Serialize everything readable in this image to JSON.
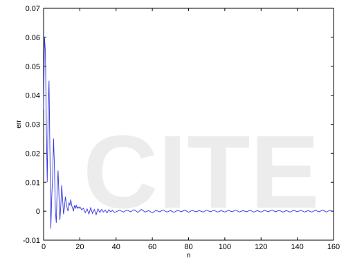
{
  "chart_data": {
    "type": "line",
    "title": "",
    "xlabel": "n",
    "ylabel": "err",
    "xlim": [
      0,
      160
    ],
    "ylim": [
      -0.01,
      0.07
    ],
    "grid": false,
    "legend": "none",
    "line_color": "#3333dd",
    "xticks": [
      "0",
      "20",
      "40",
      "60",
      "80",
      "100",
      "120",
      "140",
      "160"
    ],
    "yticks": [
      "-0.01",
      "0",
      "0.01",
      "0.02",
      "0.03",
      "0.04",
      "0.05",
      "0.06",
      "0.07"
    ],
    "series": [
      {
        "x": [
          0,
          0.5,
          1,
          1.5,
          2,
          2.5,
          3,
          3.5,
          4,
          4.5,
          5,
          5.5,
          6,
          6.5,
          7,
          7.5,
          8,
          8.5,
          9,
          9.5,
          10,
          10.5,
          11,
          11.5,
          12,
          12.5,
          13,
          13.5,
          14,
          14.5,
          15,
          15.5,
          16,
          16.5,
          17,
          17.5,
          18,
          18.5,
          19,
          19.5,
          20,
          21,
          22,
          23,
          24,
          25,
          26,
          27,
          28,
          29,
          30,
          31,
          32,
          33,
          34,
          35,
          36,
          37,
          38,
          39,
          40,
          42,
          44,
          46,
          48,
          50,
          52,
          54,
          56,
          58,
          60,
          62,
          64,
          66,
          68,
          70,
          72,
          74,
          76,
          78,
          80,
          82,
          84,
          86,
          88,
          90,
          92,
          94,
          96,
          98,
          100,
          102,
          104,
          106,
          108,
          110,
          112,
          114,
          116,
          118,
          120,
          122,
          124,
          126,
          128,
          130,
          132,
          134,
          136,
          138,
          140,
          142,
          144,
          146,
          148,
          150,
          152,
          154,
          156,
          158,
          160
        ],
        "y": [
          0.035,
          0.06,
          0.055,
          0.03,
          0.01,
          0.035,
          0.045,
          0.02,
          -0.006,
          0.005,
          0.012,
          0.025,
          0.015,
          0.0,
          -0.004,
          0.008,
          0.014,
          0.005,
          -0.003,
          0.002,
          0.009,
          0.004,
          -0.001,
          0.001,
          0.005,
          0.003,
          0.001,
          0.0,
          0.003,
          0.002,
          0.004,
          0.002,
          0.001,
          0.0,
          0.002,
          0.001,
          0.002,
          0.001,
          0.0015,
          0.001,
          0.0015,
          0.0005,
          0.001,
          -0.0005,
          0.0008,
          -0.001,
          0.0012,
          -0.0008,
          0.0006,
          -0.0012,
          0.0008,
          -0.0004,
          0.0006,
          -0.0003,
          0.0004,
          -0.0006,
          0.0005,
          -0.0002,
          0.0003,
          -0.0004,
          -0.0002,
          0.0003,
          -0.0003,
          0.0004,
          -0.0002,
          0.0005,
          -0.0004,
          0.0006,
          -0.0003,
          0.0002,
          -0.0006,
          0.0003,
          -0.0002,
          0.0004,
          -0.0003,
          0.0002,
          -0.0004,
          0.0003,
          -0.0002,
          0.0004,
          -0.0004,
          0.0003,
          -0.0002,
          0.0002,
          -0.0003,
          0.0004,
          -0.0002,
          0.0003,
          -0.0003,
          0.0002,
          -0.0003,
          0.0003,
          -0.0002,
          0.0004,
          -0.0003,
          0.0002,
          -0.0002,
          0.0003,
          -0.0003,
          0.0002,
          -0.0003,
          0.0003,
          -0.0002,
          0.0004,
          -0.0002,
          0.0003,
          -0.0003,
          0.0002,
          -0.0003,
          0.0003,
          -0.0002,
          0.0003,
          -0.0003,
          0.0002,
          -0.0003,
          0.0003,
          -0.0002,
          0.0004,
          -0.0003,
          0.0003,
          -0.0002
        ]
      }
    ]
  }
}
